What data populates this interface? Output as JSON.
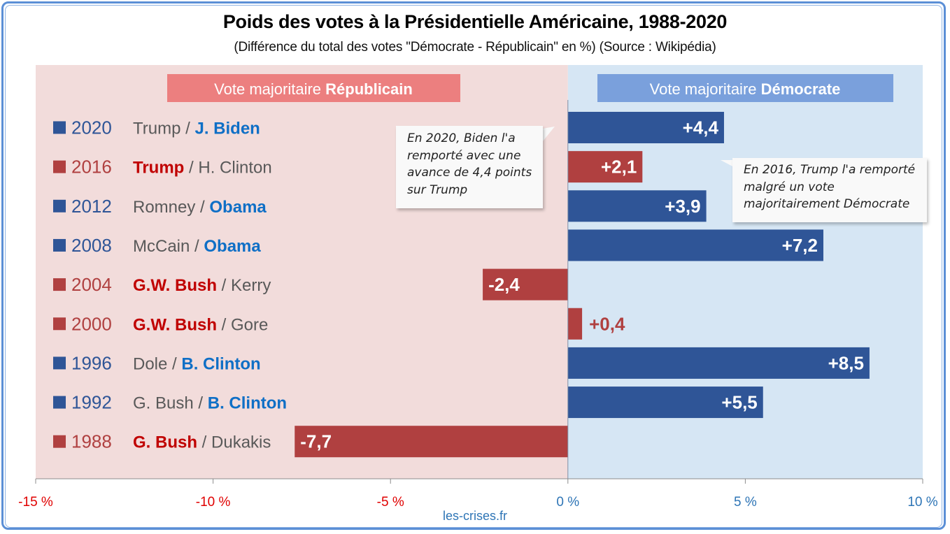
{
  "title": "Poids des votes à la Présidentielle Américaine, 1988-2020",
  "subtitle": "(Différence du total des votes \"Démocrate - Républicain\" en %) (Source : Wikipédia)",
  "footer": "les-crises.fr",
  "colors": {
    "rep_bg": "#f2dcdb",
    "dem_bg": "#d6e6f4",
    "rep_bar": "#b04040",
    "dem_bar": "#2f5597",
    "rep_header": "#ec7f7f",
    "dem_header": "#7aa0dc",
    "rep_text": "#c00000",
    "dem_text": "#0f6fc6",
    "neutral_text": "#595959",
    "rep_tick": "#e00000",
    "dem_tick": "#2e75b6"
  },
  "headers": {
    "rep_prefix": "Vote majoritaire ",
    "rep_bold": "Républicain",
    "dem_prefix": "Vote majoritaire ",
    "dem_bold": "Démocrate"
  },
  "callouts": [
    {
      "lines": [
        "En 2020, Biden l'a",
        "remporté avec une",
        "avance de 4,4 points",
        "sur Trump"
      ]
    },
    {
      "lines": [
        "En 2016, Trump l'a remporté",
        "malgré un vote",
        "majoritairement Démocrate"
      ]
    }
  ],
  "chart_data": {
    "type": "bar",
    "orientation": "horizontal",
    "title": "Poids des votes à la Présidentielle Américaine, 1988-2020",
    "xlabel": "",
    "ylabel": "",
    "xlim": [
      -15,
      10
    ],
    "xticks": [
      -15,
      -10,
      -5,
      0,
      5,
      10
    ],
    "xtick_labels": [
      "-15 %",
      "-10 %",
      "-5 %",
      "0 %",
      "5 %",
      "10 %"
    ],
    "grid": false,
    "categories": [
      "2020",
      "2016",
      "2012",
      "2008",
      "2004",
      "2000",
      "1996",
      "1992",
      "1988"
    ],
    "values": [
      4.4,
      2.1,
      3.9,
      7.2,
      -2.4,
      0.4,
      8.5,
      5.5,
      -7.7
    ],
    "value_labels": [
      "+4,4",
      "+2,1",
      "+3,9",
      "+7,2",
      "-2,4",
      "+0,4",
      "+8,5",
      "+5,5",
      "-7,7"
    ],
    "winner_party": [
      "dem",
      "rep",
      "dem",
      "dem",
      "rep",
      "rep",
      "dem",
      "dem",
      "rep"
    ],
    "candidates": [
      {
        "rep": "Trump",
        "dem": "J. Biden",
        "winner": "dem"
      },
      {
        "rep": "Trump",
        "dem": "H. Clinton",
        "winner": "rep"
      },
      {
        "rep": "Romney",
        "dem": "Obama",
        "winner": "dem"
      },
      {
        "rep": "McCain",
        "dem": "Obama",
        "winner": "dem"
      },
      {
        "rep": "G.W. Bush",
        "dem": "Kerry",
        "winner": "rep"
      },
      {
        "rep": "G.W. Bush",
        "dem": "Gore",
        "winner": "rep"
      },
      {
        "rep": "Dole",
        "dem": "B. Clinton",
        "winner": "dem"
      },
      {
        "rep": "G. Bush",
        "dem": "B. Clinton",
        "winner": "dem"
      },
      {
        "rep": "G. Bush",
        "dem": "Dukakis",
        "winner": "rep"
      }
    ],
    "separator": " / ",
    "regions": [
      {
        "name": "Vote majoritaire Républicain",
        "range": [
          -15,
          0
        ]
      },
      {
        "name": "Vote majoritaire Démocrate",
        "range": [
          0,
          10
        ]
      }
    ]
  }
}
